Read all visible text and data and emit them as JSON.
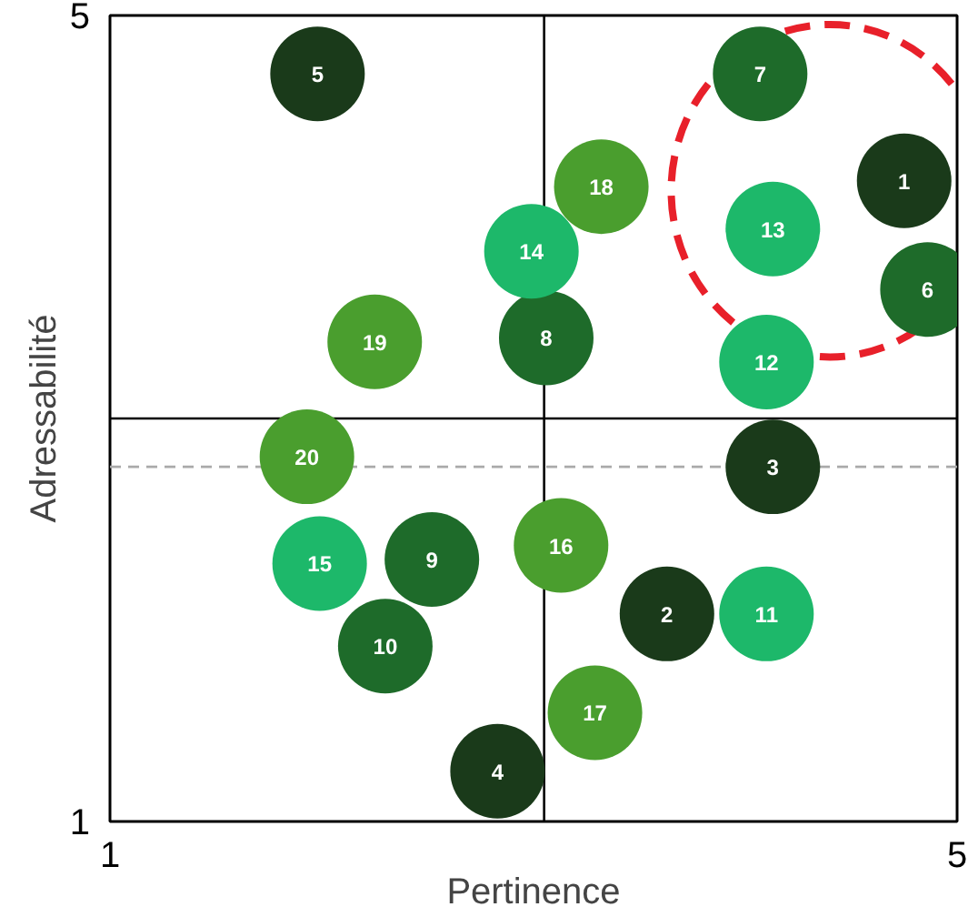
{
  "chart_data": {
    "type": "scatter",
    "xlabel": "Pertinence",
    "ylabel": "Adressabilité",
    "xlim": [
      1,
      5
    ],
    "ylim": [
      1,
      5
    ],
    "xticks": [
      1,
      5
    ],
    "yticks": [
      1,
      5
    ],
    "series": [
      {
        "name": "1",
        "color": "#1a3a1a",
        "x": [
          4.75
        ],
        "values": [
          4.18
        ]
      },
      {
        "name": "2",
        "color": "#1a3a1a",
        "x": [
          3.63
        ],
        "values": [
          2.03
        ]
      },
      {
        "name": "3",
        "color": "#1a3a1a",
        "x": [
          4.13
        ],
        "values": [
          2.76
        ]
      },
      {
        "name": "4",
        "color": "#1a3a1a",
        "x": [
          2.83
        ],
        "values": [
          1.25
        ]
      },
      {
        "name": "5",
        "color": "#1a3a1a",
        "x": [
          1.98
        ],
        "values": [
          4.71
        ]
      },
      {
        "name": "6",
        "color": "#1e6b2a",
        "x": [
          4.86
        ],
        "values": [
          3.64
        ]
      },
      {
        "name": "7",
        "color": "#1e6b2a",
        "x": [
          4.07
        ],
        "values": [
          4.71
        ]
      },
      {
        "name": "8",
        "color": "#1e6b2a",
        "x": [
          3.06
        ],
        "values": [
          3.4
        ]
      },
      {
        "name": "9",
        "color": "#1e6b2a",
        "x": [
          2.52
        ],
        "values": [
          2.3
        ]
      },
      {
        "name": "10",
        "color": "#1e6b2a",
        "x": [
          2.3
        ],
        "values": [
          1.87
        ]
      },
      {
        "name": "11",
        "color": "#1db86a",
        "x": [
          4.1
        ],
        "values": [
          2.03
        ]
      },
      {
        "name": "12",
        "color": "#1db86a",
        "x": [
          4.1
        ],
        "values": [
          3.28
        ]
      },
      {
        "name": "13",
        "color": "#1db86a",
        "x": [
          4.13
        ],
        "values": [
          3.94
        ]
      },
      {
        "name": "14",
        "color": "#1db86a",
        "x": [
          2.99
        ],
        "values": [
          3.83
        ]
      },
      {
        "name": "15",
        "color": "#1db86a",
        "x": [
          1.99
        ],
        "values": [
          2.28
        ]
      },
      {
        "name": "16",
        "color": "#4a9e2e",
        "x": [
          3.13
        ],
        "values": [
          2.37
        ]
      },
      {
        "name": "17",
        "color": "#4a9e2e",
        "x": [
          3.29
        ],
        "values": [
          1.54
        ]
      },
      {
        "name": "18",
        "color": "#4a9e2e",
        "x": [
          3.32
        ],
        "values": [
          4.15
        ]
      },
      {
        "name": "19",
        "color": "#4a9e2e",
        "x": [
          2.25
        ],
        "values": [
          3.38
        ]
      },
      {
        "name": "20",
        "color": "#4a9e2e",
        "x": [
          1.93
        ],
        "values": [
          2.81
        ]
      }
    ],
    "ref_lines": [
      {
        "axis": "x",
        "value": 3.05,
        "color": "#000000",
        "line_style": "solid"
      },
      {
        "axis": "y",
        "value": 3,
        "color": "#000000",
        "line_style": "solid"
      },
      {
        "axis": "y",
        "value": 2.76,
        "color": "#aaaaaa",
        "line_style": "dashed"
      }
    ],
    "marker": "circle"
  }
}
